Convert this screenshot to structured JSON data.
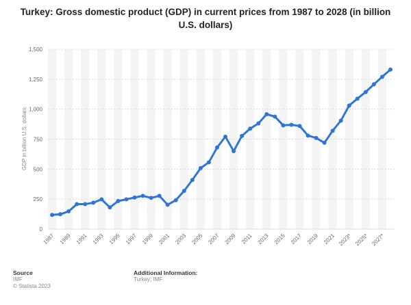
{
  "title": "Turkey: Gross domestic product (GDP) in current prices from 1987 to 2028 (in billion U.S. dollars)",
  "footer": {
    "source_heading": "Source",
    "source_value": "IMF",
    "copyright": "© Statista 2023",
    "additional_heading": "Additional Information:",
    "additional_value": "Turkey; IMF"
  },
  "colors": {
    "line": "#2f76d4",
    "grid": "#dcdcdc",
    "band": "#f4f4f4"
  },
  "chart_data": {
    "type": "line",
    "title": "Turkey: Gross domestic product (GDP) in current prices from 1987 to 2028 (in billion U.S. dollars)",
    "xlabel": "",
    "ylabel": "GDP in billion U.S. dollars",
    "ylim": [
      0,
      1500
    ],
    "yticks": [
      0,
      250,
      500,
      750,
      1000,
      1250,
      1500
    ],
    "ytick_labels": [
      "0",
      "250",
      "500",
      "750",
      "1,000",
      "1,250",
      "1,500"
    ],
    "grid": true,
    "legend": "none",
    "x": [
      "1987",
      "1988",
      "1989",
      "1990",
      "1991",
      "1992",
      "1993",
      "1994",
      "1995",
      "1996",
      "1997",
      "1998",
      "1999",
      "2000",
      "2001",
      "2002",
      "2003",
      "2004",
      "2005",
      "2006",
      "2007",
      "2008",
      "2009",
      "2010",
      "2011",
      "2012",
      "2013",
      "2014",
      "2015",
      "2016",
      "2017",
      "2018",
      "2019",
      "2020",
      "2021",
      "2022",
      "2023*",
      "2024*",
      "2025*",
      "2026*",
      "2027*",
      "2028*"
    ],
    "x_tick_labels_shown": [
      "1987",
      "1989",
      "1991",
      "1993",
      "1995",
      "1997",
      "1999",
      "2001",
      "2003",
      "2005",
      "2007",
      "2009",
      "2011",
      "2013",
      "2015",
      "2017",
      "2019",
      "2021",
      "2023*",
      "2025*",
      "2027*"
    ],
    "values": [
      118,
      124,
      148,
      208,
      208,
      220,
      248,
      181,
      234,
      248,
      263,
      277,
      260,
      277,
      203,
      241,
      319,
      410,
      508,
      557,
      681,
      771,
      650,
      777,
      838,
      881,
      958,
      938,
      865,
      870,
      860,
      780,
      760,
      720,
      820,
      905,
      1030,
      1088,
      1143,
      1208,
      1270,
      1330
    ]
  }
}
